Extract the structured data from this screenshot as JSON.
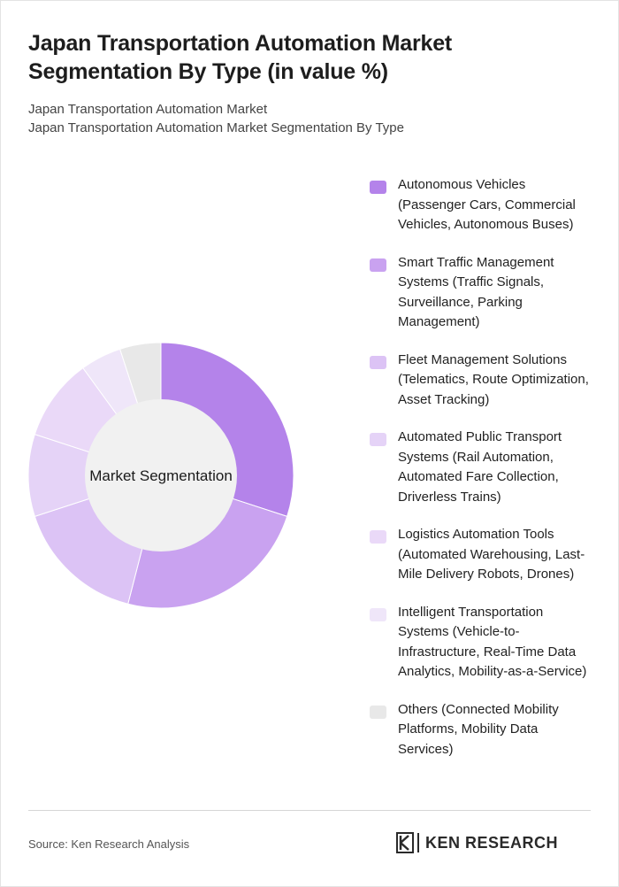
{
  "title": "Japan Transportation Automation Market Segmentation By Type (in value %)",
  "subtitle_line1": "Japan Transportation Automation Market",
  "subtitle_line2": "Japan Transportation Automation Market Segmentation By Type",
  "center_label": "Market Segmentation",
  "source": "Source: Ken Research Analysis",
  "logo": {
    "text": "KEN RESEARCH",
    "icon": "ken-research-logo-icon"
  },
  "chart_data": {
    "type": "pie",
    "variant": "donut",
    "legend_position": "right",
    "categories": [
      "Autonomous Vehicles (Passenger Cars, Commercial Vehicles, Autonomous Buses)",
      "Smart Traffic Management Systems (Traffic Signals, Surveillance, Parking Management)",
      "Fleet Management Solutions (Telematics, Route Optimization, Asset Tracking)",
      "Automated Public Transport Systems (Rail Automation, Automated Fare Collection, Driverless Trains)",
      "Logistics Automation Tools (Automated Warehousing, Last-Mile Delivery Robots, Drones)",
      "Intelligent Transportation Systems (Vehicle-to-Infrastructure, Real-Time Data Analytics, Mobility-as-a-Service)",
      "Others (Connected Mobility Platforms, Mobility Data Services)"
    ],
    "values": [
      30,
      24,
      16,
      10,
      10,
      5,
      5
    ],
    "colors": [
      "#b483ea",
      "#c9a2f0",
      "#dcc3f5",
      "#e5d3f7",
      "#ead9f8",
      "#efe6f9",
      "#e8e8e8"
    ]
  }
}
